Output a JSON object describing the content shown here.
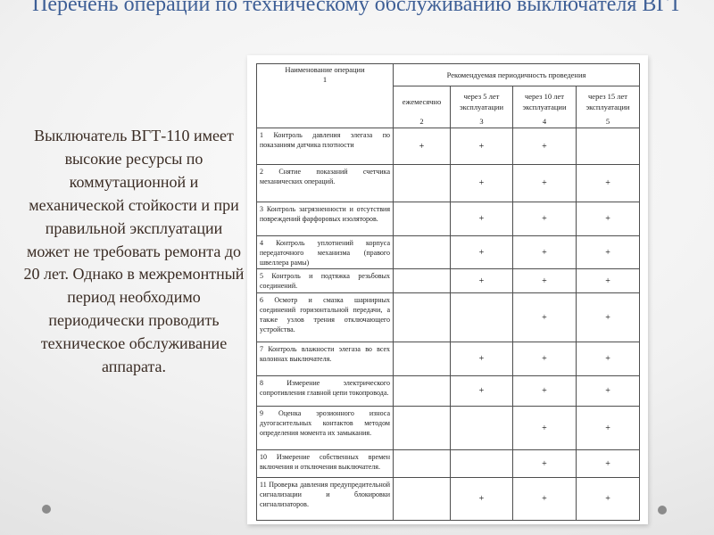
{
  "title": "Перечень операций по техническому обслуживанию выключателя ВГТ",
  "paragraph": "Выключатель ВГТ-110 имеет высокие ресурсы по коммутационной и механической стойкости и при правильной эксплуатации может не требовать ремонта до 20 лет. Однако в межремонтный период необходимо периодически проводить техническое обслуживание аппарата.",
  "colors": {
    "title_text": "#3e5f96",
    "paragraph_text": "#3a2c24",
    "table_border": "#4e4e4e",
    "panel_background": "#ffffff",
    "corner_dot": "#8b8b8b"
  },
  "table": {
    "header": {
      "name_col": "Наименование операции",
      "name_num": "1",
      "periodicity": "Рекомендуемая периодичность проведения",
      "cols": [
        {
          "label": "ежемесячно",
          "num": "2"
        },
        {
          "label": "через 5 лет эксплуатации",
          "num": "3"
        },
        {
          "label": "через 10 лет эксплуатации",
          "num": "4"
        },
        {
          "label": "через 15 лет эксплуатации",
          "num": "5"
        }
      ]
    },
    "rows": [
      {
        "name": "1  Контроль  давления элегаза  по  показаниям датчика плотности",
        "marks": [
          "+",
          "+",
          "+",
          ""
        ]
      },
      {
        "name": "2  Снятие  показаний счетчика  механических операций.",
        "marks": [
          "",
          "+",
          "+",
          "+"
        ]
      },
      {
        "name": "3  Контроль  загрязненности  и отсутствия  повреждений фарфоровых изоляторов.",
        "marks": [
          "",
          "+",
          "+",
          "+"
        ]
      },
      {
        "name": "4 Контроль уплотнений корпуса передаточного  механизма (правого швеллера рамы)",
        "marks": [
          "",
          "+",
          "+",
          "+"
        ]
      },
      {
        "name": "5  Контроль  и  подтяжка резьбовых соединений.",
        "marks": [
          "",
          "+",
          "+",
          "+"
        ]
      },
      {
        "name": "6 Осмотр и смазка шарнирных соединений  горизонтальной передачи, а также узлов трения отключающего устройства.",
        "marks": [
          "",
          "",
          "+",
          "+"
        ]
      },
      {
        "name": "7 Контроль влажности элегаза во всех  колоннах выключателя.",
        "marks": [
          "",
          "+",
          "+",
          "+"
        ]
      },
      {
        "name": "8  Измерение  электрического сопротивления  главной  цепи токопровода.",
        "marks": [
          "",
          "+",
          "+",
          "+"
        ]
      },
      {
        "name": "9  Оценка  эрозионного  износа дугогасительных  контактов методом  определения момента их замыкания.",
        "marks": [
          "",
          "",
          "+",
          "+"
        ]
      },
      {
        "name": "10 Измерение собственных времен  включения  и отключения выключателя.",
        "marks": [
          "",
          "",
          "+",
          "+"
        ]
      },
      {
        "name": "11  Проверка  давления предупредительной сигнализации  и  блокировки сигнализаторов.",
        "marks": [
          "",
          "+",
          "+",
          "+"
        ]
      }
    ]
  }
}
